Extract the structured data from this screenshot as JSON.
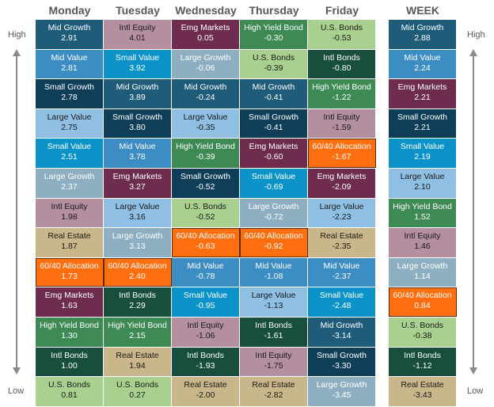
{
  "labels": {
    "high": "High",
    "low": "Low"
  },
  "assets": {
    "Mid Growth": {
      "bg": "#1F5C7A",
      "fg": "#ffffff"
    },
    "Mid Value": {
      "bg": "#3C8DC4",
      "fg": "#ffffff"
    },
    "Small Growth": {
      "bg": "#0F3E59",
      "fg": "#ffffff"
    },
    "Large Value": {
      "bg": "#8FC0E3",
      "fg": "#1a1a1a"
    },
    "Small Value": {
      "bg": "#0B92C9",
      "fg": "#ffffff"
    },
    "Large Growth": {
      "bg": "#8EAFC2",
      "fg": "#ffffff"
    },
    "Intl Equity": {
      "bg": "#B48FA0",
      "fg": "#1a1a1a"
    },
    "Real Estate": {
      "bg": "#C9B68A",
      "fg": "#1a1a1a"
    },
    "60/40 Allocation": {
      "bg": "#FF6F0F",
      "fg": "#ffffff"
    },
    "Emg Markets": {
      "bg": "#6E2D4E",
      "fg": "#ffffff"
    },
    "High Yield Bond": {
      "bg": "#3E8A55",
      "fg": "#ffffff"
    },
    "Intl Bonds": {
      "bg": "#184F3C",
      "fg": "#ffffff"
    },
    "U.S. Bonds": {
      "bg": "#A9D08E",
      "fg": "#1a1a1a"
    }
  },
  "chart_data": {
    "type": "table",
    "columns": [
      {
        "name": "Monday",
        "cells": [
          {
            "asset": "Mid Growth",
            "value": "2.91"
          },
          {
            "asset": "Mid Value",
            "value": "2.81"
          },
          {
            "asset": "Small Growth",
            "value": "2.78"
          },
          {
            "asset": "Large Value",
            "value": "2.75"
          },
          {
            "asset": "Small Value",
            "value": "2.51"
          },
          {
            "asset": "Large Growth",
            "value": "2.37"
          },
          {
            "asset": "Intl Equity",
            "value": "1.98"
          },
          {
            "asset": "Real Estate",
            "value": "1.87"
          },
          {
            "asset": "60/40 Allocation",
            "value": "1.73"
          },
          {
            "asset": "Emg Markets",
            "value": "1.63"
          },
          {
            "asset": "High Yield Bond",
            "value": "1.30"
          },
          {
            "asset": "Intl Bonds",
            "value": "1.00"
          },
          {
            "asset": "U.S. Bonds",
            "value": "0.81"
          }
        ]
      },
      {
        "name": "Tuesday",
        "cells": [
          {
            "asset": "Intl Equity",
            "value": "4.01"
          },
          {
            "asset": "Small Value",
            "value": "3.92"
          },
          {
            "asset": "Mid Growth",
            "value": "3.89"
          },
          {
            "asset": "Small Growth",
            "value": "3.80"
          },
          {
            "asset": "Mid Value",
            "value": "3.78"
          },
          {
            "asset": "Emg Markets",
            "value": "3.27"
          },
          {
            "asset": "Large Value",
            "value": "3.16"
          },
          {
            "asset": "Large Growth",
            "value": "3.13"
          },
          {
            "asset": "60/40 Allocation",
            "value": "2.40"
          },
          {
            "asset": "Intl Bonds",
            "value": "2.29"
          },
          {
            "asset": "High Yield Bond",
            "value": "2.15"
          },
          {
            "asset": "Real Estate",
            "value": "1.94"
          },
          {
            "asset": "U.S. Bonds",
            "value": "0.27"
          }
        ]
      },
      {
        "name": "Wednesday",
        "cells": [
          {
            "asset": "Emg Markets",
            "value": "0.05"
          },
          {
            "asset": "Large Growth",
            "value": "-0.06"
          },
          {
            "asset": "Mid Growth",
            "value": "-0.24"
          },
          {
            "asset": "Large Value",
            "value": "-0.35"
          },
          {
            "asset": "High Yield Bond",
            "value": "-0.39"
          },
          {
            "asset": "Small Growth",
            "value": "-0.52"
          },
          {
            "asset": "U.S. Bonds",
            "value": "-0.52"
          },
          {
            "asset": "60/40 Allocation",
            "value": "-0.63"
          },
          {
            "asset": "Mid Value",
            "value": "-0.78"
          },
          {
            "asset": "Small Value",
            "value": "-0.95"
          },
          {
            "asset": "Intl Equity",
            "value": "-1.06"
          },
          {
            "asset": "Intl Bonds",
            "value": "-1.93"
          },
          {
            "asset": "Real Estate",
            "value": "-2.00"
          }
        ]
      },
      {
        "name": "Thursday",
        "cells": [
          {
            "asset": "High Yield Bond",
            "value": "-0.30"
          },
          {
            "asset": "U.S. Bonds",
            "value": "-0.39"
          },
          {
            "asset": "Mid Growth",
            "value": "-0.41"
          },
          {
            "asset": "Small Growth",
            "value": "-0.41"
          },
          {
            "asset": "Emg Markets",
            "value": "-0.60"
          },
          {
            "asset": "Small Value",
            "value": "-0.69"
          },
          {
            "asset": "Large Growth",
            "value": "-0.72"
          },
          {
            "asset": "60/40 Allocation",
            "value": "-0.92"
          },
          {
            "asset": "Mid Value",
            "value": "-1.08"
          },
          {
            "asset": "Large Value",
            "value": "-1.13"
          },
          {
            "asset": "Intl Bonds",
            "value": "-1.61"
          },
          {
            "asset": "Intl Equity",
            "value": "-1.75"
          },
          {
            "asset": "Real Estate",
            "value": "-2.82"
          }
        ]
      },
      {
        "name": "Friday",
        "cells": [
          {
            "asset": "U.S. Bonds",
            "value": "-0.53"
          },
          {
            "asset": "Intl Bonds",
            "value": "-0.80"
          },
          {
            "asset": "High Yield Bond",
            "value": "-1.22"
          },
          {
            "asset": "Intl Equity",
            "value": "-1.59"
          },
          {
            "asset": "60/40 Allocation",
            "value": "-1.67"
          },
          {
            "asset": "Emg Markets",
            "value": "-2.09"
          },
          {
            "asset": "Large Value",
            "value": "-2.23"
          },
          {
            "asset": "Real Estate",
            "value": "-2.35"
          },
          {
            "asset": "Mid Value",
            "value": "-2.37"
          },
          {
            "asset": "Small Value",
            "value": "-2.48"
          },
          {
            "asset": "Mid Growth",
            "value": "-3.14"
          },
          {
            "asset": "Small Growth",
            "value": "-3.30"
          },
          {
            "asset": "Large Growth",
            "value": "-3.45"
          }
        ]
      },
      {
        "name": "WEEK",
        "cells": [
          {
            "asset": "Mid Growth",
            "value": "2.88"
          },
          {
            "asset": "Mid Value",
            "value": "2.24"
          },
          {
            "asset": "Emg Markets",
            "value": "2.21"
          },
          {
            "asset": "Small Growth",
            "value": "2.21"
          },
          {
            "asset": "Small Value",
            "value": "2.19"
          },
          {
            "asset": "Large Value",
            "value": "2.10"
          },
          {
            "asset": "High Yield Bond",
            "value": "1.52"
          },
          {
            "asset": "Intl Equity",
            "value": "1.46"
          },
          {
            "asset": "Large Growth",
            "value": "1.14"
          },
          {
            "asset": "60/40 Allocation",
            "value": "0.84"
          },
          {
            "asset": "U.S. Bonds",
            "value": "-0.38"
          },
          {
            "asset": "Intl Bonds",
            "value": "-1.12"
          },
          {
            "asset": "Real Estate",
            "value": "-3.43"
          }
        ]
      }
    ]
  }
}
